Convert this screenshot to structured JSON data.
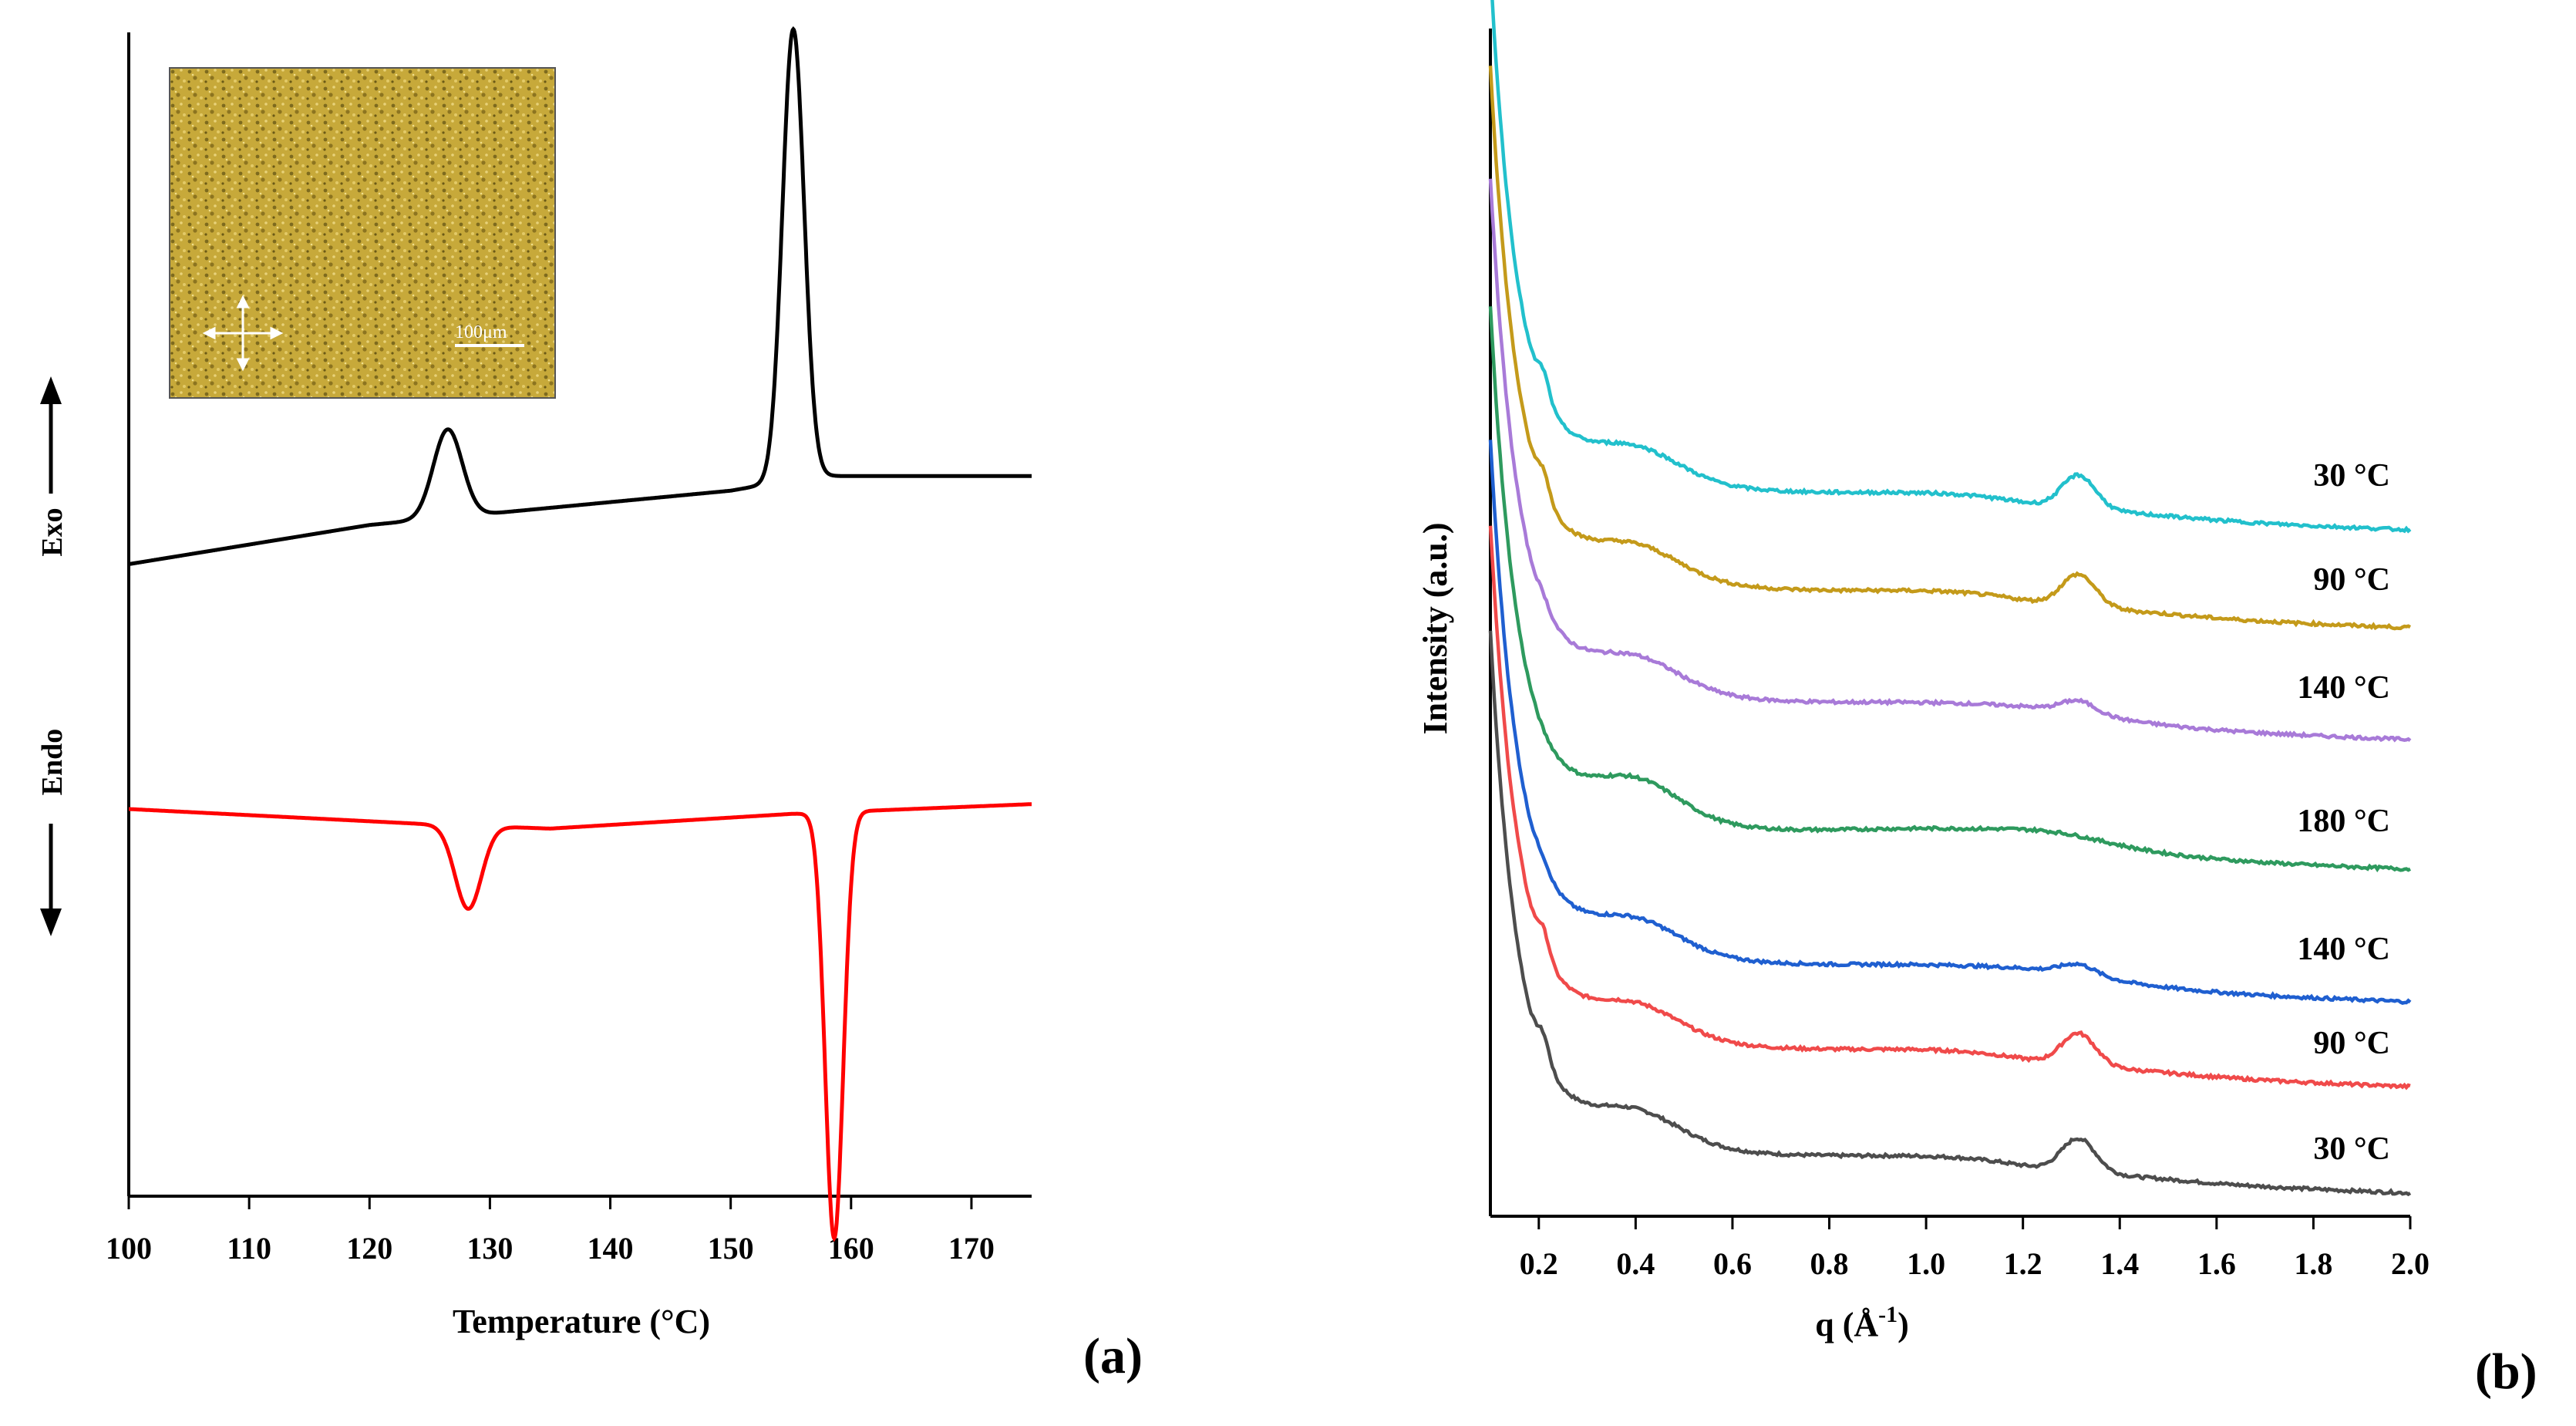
{
  "chart_data": [
    {
      "type": "line",
      "panel_label": "(a)",
      "xlabel": "Temperature (°C)",
      "ylabel_up": "Exo",
      "ylabel_down": "Endo",
      "xlim": [
        100,
        175
      ],
      "xticks": [
        "100",
        "110",
        "120",
        "130",
        "140",
        "150",
        "160",
        "170"
      ],
      "grid": false,
      "inset": {
        "scale_label": "100μm"
      },
      "series": [
        {
          "color": "#000000",
          "baseline": [
            [
              100,
              0.1
            ],
            [
              120,
              0.18
            ],
            [
              150,
              0.25
            ],
            [
              157,
              0.28
            ],
            [
              175,
              0.28
            ]
          ],
          "peaks": [
            {
              "x": 126.5,
              "height": 0.18,
              "width": 1.2
            },
            {
              "x": 155.2,
              "height": 0.92,
              "width": 0.9
            }
          ]
        },
        {
          "color": "#ff0000",
          "baseline": [
            [
              100,
              -0.4
            ],
            [
              124,
              -0.43
            ],
            [
              135,
              -0.44
            ],
            [
              155,
              -0.41
            ],
            [
              175,
              -0.39
            ]
          ],
          "peaks": [
            {
              "x": 128.2,
              "height": -0.17,
              "width": 1.1
            },
            {
              "x": 158.6,
              "height": -0.87,
              "width": 0.75
            }
          ]
        }
      ]
    },
    {
      "type": "line",
      "panel_label": "(b)",
      "xlabel": "q (Å",
      "xlabel_sup": "-1",
      "xlabel_tail": ")",
      "ylabel": "Intensity (a.u.)",
      "xlim": [
        0.1,
        2.0
      ],
      "xticks": [
        "0.2",
        "0.4",
        "0.6",
        "0.8",
        "1.0",
        "1.2",
        "1.4",
        "1.6",
        "1.8",
        "2.0"
      ],
      "grid": false,
      "series": [
        {
          "name": "30 °C",
          "color": "#4d4d4d",
          "offset": 0,
          "amorphous": 1.0,
          "crystal": 1.0
        },
        {
          "name": "90 °C",
          "color": "#f04a4a",
          "offset": 1,
          "amorphous": 1.0,
          "crystal": 0.95
        },
        {
          "name": "140 °C",
          "color": "#1f5fd0",
          "offset": 2,
          "amorphous": 1.0,
          "crystal": 0.3
        },
        {
          "name": "180 °C",
          "color": "#2e9a5e",
          "offset": 3,
          "amorphous": 1.25,
          "crystal": 0.0
        },
        {
          "name": "140 °C",
          "color": "#a87ad8",
          "offset": 4,
          "amorphous": 1.0,
          "crystal": 0.35
        },
        {
          "name": "90 °C",
          "color": "#c49a1a",
          "offset": 5,
          "amorphous": 1.0,
          "crystal": 0.95
        },
        {
          "name": "30 °C",
          "color": "#22c0cc",
          "offset": 6,
          "amorphous": 1.0,
          "crystal": 1.0
        }
      ]
    }
  ]
}
